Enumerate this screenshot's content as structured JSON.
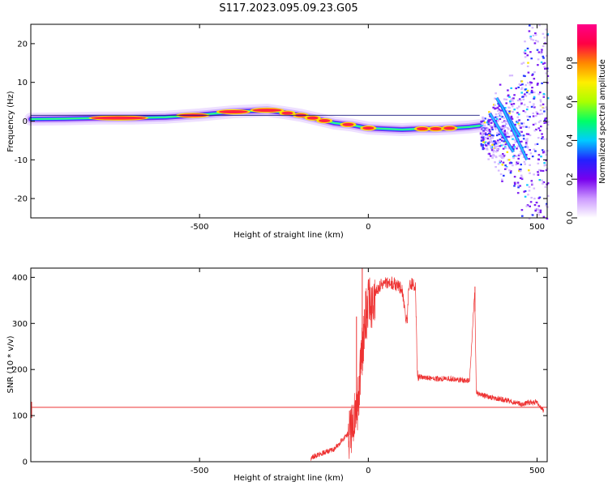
{
  "title": "S117.2023.095.09.23.G05",
  "colors": {
    "snr_line": "#ee3333",
    "axis": "#000000"
  },
  "chart_data": [
    {
      "type": "heatmap",
      "xlabel": "Height of straight line (km)",
      "ylabel": "Frequency (Hz)",
      "xlim": [
        -1000,
        530
      ],
      "ylim": [
        -25,
        25
      ],
      "xticks": [
        -500,
        0,
        500
      ],
      "yticks": [
        -20,
        -10,
        0,
        10,
        20
      ],
      "colorbar": {
        "label": "Normalized spectral amplitude",
        "range": [
          0.0,
          1.0
        ],
        "ticks": [
          0.0,
          0.2,
          0.4,
          0.6,
          0.8
        ],
        "tick_labels": [
          "0.0",
          "0.2",
          "0.4",
          "0.6",
          "0.8"
        ],
        "colormap": [
          "#ffffff",
          "#cc99ff",
          "#7700ee",
          "#2222ff",
          "#00ccff",
          "#00ff66",
          "#aaff00",
          "#ffee00",
          "#ff8800",
          "#ff0044",
          "#ff0088"
        ]
      },
      "reference_line_hz": 1.5,
      "ridge": {
        "x": [
          -1000,
          -900,
          -800,
          -700,
          -600,
          -500,
          -400,
          -300,
          -250,
          -200,
          -150,
          -100,
          -50,
          0,
          50,
          100,
          150,
          200,
          250,
          300,
          330
        ],
        "y": [
          0.5,
          0.6,
          0.8,
          0.8,
          1.0,
          1.6,
          2.4,
          2.8,
          2.2,
          1.5,
          0.5,
          -0.5,
          -1.0,
          -1.8,
          -2.0,
          -2.2,
          -2.0,
          -2.0,
          -1.8,
          -1.5,
          -1.2
        ]
      },
      "peaks_x": [
        -740,
        -520,
        -400,
        -300,
        -240,
        -200,
        -165,
        -130,
        -60,
        0,
        160,
        200,
        240
      ],
      "scatter_region_km": [
        330,
        530
      ]
    },
    {
      "type": "line",
      "xlabel": "Height of straight line (km)",
      "ylabel": "SNR (10 * v/v)",
      "xlim": [
        -1000,
        530
      ],
      "ylim": [
        0,
        420
      ],
      "xticks": [
        -500,
        0,
        500
      ],
      "yticks": [
        0,
        100,
        200,
        300,
        400
      ],
      "threshold": 118,
      "series": [
        {
          "x": [
            -170,
            -150,
            -100,
            -80,
            -60,
            -50,
            -40,
            -30,
            -20,
            -10,
            0,
            10,
            20,
            40,
            60,
            80,
            100,
            110,
            115,
            120,
            130,
            140,
            145,
            150,
            200,
            250,
            300,
            315,
            320,
            330,
            400,
            450,
            500,
            520
          ],
          "y": [
            8,
            15,
            28,
            45,
            60,
            75,
            95,
            130,
            230,
            290,
            360,
            330,
            370,
            385,
            390,
            385,
            375,
            310,
            300,
            385,
            385,
            380,
            190,
            185,
            180,
            180,
            175,
            370,
            150,
            145,
            135,
            125,
            130,
            110
          ]
        }
      ],
      "spikes": [
        {
          "x": -35,
          "y": 315
        },
        {
          "x": -18,
          "y": 420
        },
        {
          "x": -8,
          "y": 370
        },
        {
          "x": 316,
          "y": 380
        }
      ]
    }
  ]
}
